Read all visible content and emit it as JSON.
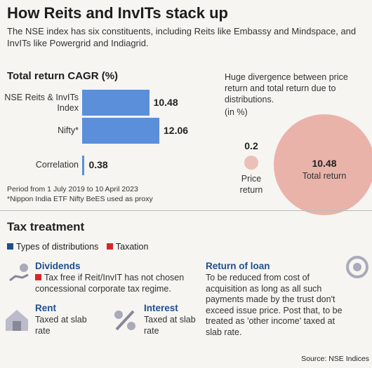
{
  "title": "How Reits and InvITs stack up",
  "subtitle": "The NSE index has six constituents, including Reits like Embassy and Mindspace, and InvITs like Powergrid and Indiagrid.",
  "chart_data": [
    {
      "type": "bar",
      "orientation": "horizontal",
      "title": "Total return CAGR (%)",
      "categories": [
        "NSE Reits & InvITs Index",
        "Nifty*",
        "Correlation"
      ],
      "values": [
        10.48,
        12.06,
        0.38
      ],
      "color": "#5b8fd9",
      "notes": [
        "Period from 1 July 2019 to 10 April 2023",
        "*Nippon India ETF Nifty BeES used as proxy"
      ]
    },
    {
      "type": "bubble",
      "title": "Huge divergence between price return and total return due to distributions.",
      "unit": "(in %)",
      "categories": [
        "Price return",
        "Total return"
      ],
      "values": [
        0.2,
        10.48
      ],
      "color": "#e9b3aa"
    }
  ],
  "tax": {
    "title": "Tax treatment",
    "legend": [
      {
        "name": "Types of distributions",
        "color": "#1f4e8c"
      },
      {
        "name": "Taxation",
        "color": "#d9262c"
      }
    ],
    "items": [
      {
        "title": "Dividends",
        "text": "Tax free if Reit/InvIT has not chosen concessional corporate tax regime."
      },
      {
        "title": "Rent",
        "text": "Taxed at slab rate"
      },
      {
        "title": "Interest",
        "text": "Taxed at slab rate"
      },
      {
        "title": "Return of loan",
        "text": "To be reduced from cost of acquisition as long as all such payments made by the trust don't exceed issue price. Post that, to be treated as 'other income' taxed at slab rate."
      }
    ]
  },
  "source": "Source: NSE Indices"
}
